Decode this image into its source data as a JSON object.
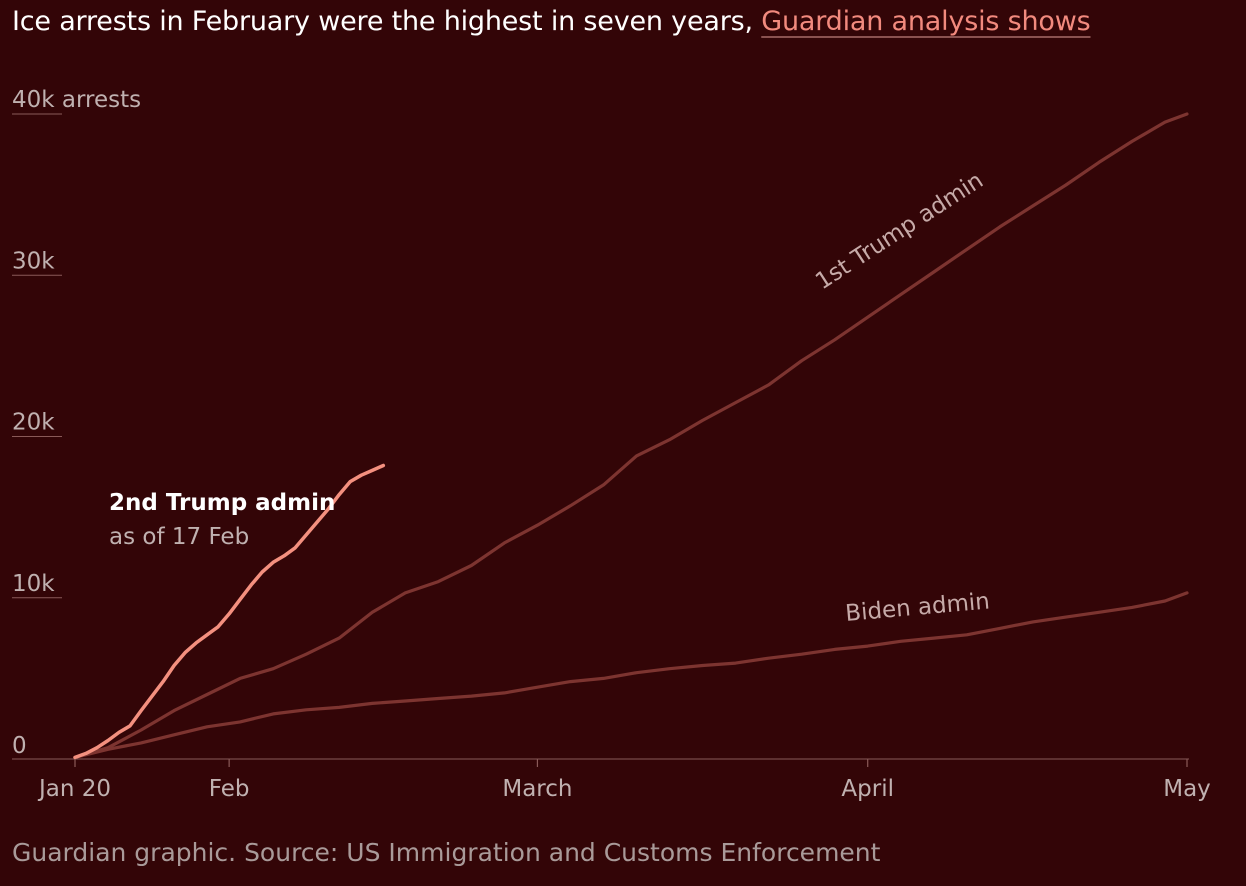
{
  "header": {
    "title": "Ice arrests in February were the highest in seven years,",
    "link_text": "Guardian analysis shows"
  },
  "footer": {
    "source": "Guardian graphic. Source: US Immigration and Customs Enforcement"
  },
  "colors": {
    "background": "#330507",
    "trump2": "#f4907f",
    "trump1": "#7d3430",
    "biden": "#7d3430",
    "axis_text": "#c0b1b0",
    "gridline": "#8a5a58"
  },
  "chart_data": {
    "type": "line",
    "title": "Ice arrests in February were the highest in seven years, Guardian analysis shows",
    "y_axis_unit_label": "arrests",
    "ylim": [
      0,
      40000
    ],
    "y_ticks": [
      {
        "value": 0,
        "label": "0"
      },
      {
        "value": 10000,
        "label": "10k"
      },
      {
        "value": 20000,
        "label": "20k"
      },
      {
        "value": 30000,
        "label": "30k"
      },
      {
        "value": 40000,
        "label": "40k"
      }
    ],
    "x_range_days": [
      0,
      101
    ],
    "x_ticks": [
      {
        "day": 0,
        "label": "Jan 20"
      },
      {
        "day": 14,
        "label": "Feb"
      },
      {
        "day": 42,
        "label": "March"
      },
      {
        "day": 72,
        "label": "April"
      },
      {
        "day": 101,
        "label": "May"
      }
    ],
    "grid": false,
    "series": [
      {
        "id": "biden",
        "name": "Biden admin",
        "x": [
          0,
          3,
          6,
          9,
          12,
          15,
          18,
          21,
          24,
          27,
          30,
          33,
          36,
          39,
          42,
          45,
          48,
          51,
          54,
          57,
          60,
          63,
          66,
          69,
          72,
          75,
          78,
          81,
          84,
          87,
          90,
          93,
          96,
          99,
          101
        ],
        "values": [
          100,
          600,
          1000,
          1500,
          2000,
          2300,
          2800,
          3050,
          3200,
          3450,
          3600,
          3750,
          3900,
          4100,
          4450,
          4800,
          5000,
          5350,
          5600,
          5800,
          5950,
          6250,
          6500,
          6800,
          7000,
          7300,
          7500,
          7700,
          8100,
          8500,
          8800,
          9100,
          9400,
          9800,
          10300
        ]
      },
      {
        "id": "trump1",
        "name": "1st Trump admin",
        "x": [
          0,
          3,
          6,
          9,
          12,
          15,
          18,
          21,
          24,
          27,
          30,
          33,
          36,
          39,
          42,
          45,
          48,
          51,
          54,
          57,
          60,
          63,
          66,
          69,
          72,
          75,
          78,
          81,
          84,
          87,
          90,
          93,
          96,
          99,
          101
        ],
        "values": [
          100,
          700,
          1800,
          3000,
          4000,
          5000,
          5600,
          6500,
          7500,
          9100,
          10300,
          11000,
          12000,
          13400,
          14500,
          15700,
          17000,
          18800,
          19800,
          21000,
          22100,
          23200,
          24700,
          26000,
          27400,
          28800,
          30200,
          31600,
          33000,
          34300,
          35600,
          37000,
          38300,
          39500,
          40000
        ]
      },
      {
        "id": "trump2",
        "name": "2nd Trump admin",
        "label_note": "as of 17 Feb",
        "x": [
          0,
          1,
          2,
          3,
          4,
          5,
          6,
          7,
          8,
          9,
          10,
          11,
          12,
          13,
          14,
          15,
          16,
          17,
          18,
          19,
          20,
          21,
          22,
          23,
          24,
          25,
          26,
          27,
          28
        ],
        "values": [
          100,
          350,
          700,
          1150,
          1650,
          2050,
          3000,
          3900,
          4800,
          5800,
          6600,
          7200,
          7700,
          8200,
          9000,
          9900,
          10800,
          11600,
          12200,
          12600,
          13100,
          13900,
          14700,
          15500,
          16400,
          17200,
          17600,
          17900,
          18200
        ]
      }
    ],
    "annotations": [
      {
        "text": "1st Trump admin",
        "series": "trump1"
      },
      {
        "text": "Biden admin",
        "series": "biden"
      },
      {
        "text": "2nd Trump admin",
        "sub": "as of 17 Feb",
        "series": "trump2"
      }
    ]
  }
}
